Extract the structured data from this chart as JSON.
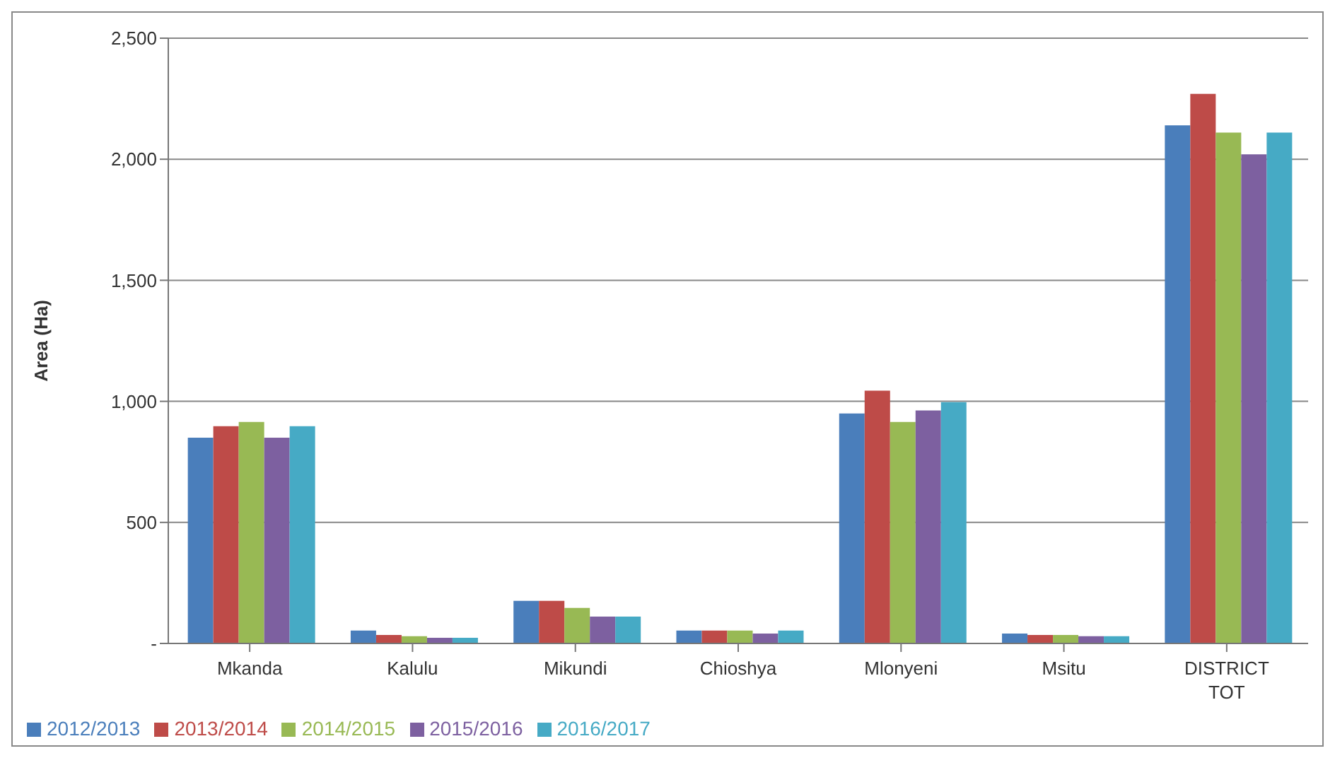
{
  "chart_data": {
    "type": "bar",
    "ylabel": "Area (Ha)",
    "categories": [
      "Mkanda",
      "Kalulu",
      "Mikundi",
      "Chioshya",
      "Mlonyeni",
      "Msitu",
      "DISTRICT TOT"
    ],
    "series": [
      {
        "name": "2012/2013",
        "color": "#4a7ebb",
        "values": [
          850,
          53,
          176,
          53,
          950,
          41,
          2140
        ]
      },
      {
        "name": "2013/2014",
        "color": "#be4b48",
        "values": [
          897,
          35,
          176,
          53,
          1044,
          35,
          2270
        ]
      },
      {
        "name": "2014/2015",
        "color": "#98b954",
        "values": [
          915,
          30,
          147,
          53,
          915,
          35,
          2110
        ]
      },
      {
        "name": "2015/2016",
        "color": "#7d60a0",
        "values": [
          850,
          23,
          111,
          41,
          962,
          30,
          2020
        ]
      },
      {
        "name": "2016/2017",
        "color": "#46aac5",
        "values": [
          897,
          23,
          111,
          53,
          997,
          30,
          2110
        ]
      }
    ],
    "ylim": [
      0,
      2500
    ],
    "yticks": [
      {
        "value": 0,
        "label": "-"
      },
      {
        "value": 500,
        "label": "500"
      },
      {
        "value": 1000,
        "label": "1,000"
      },
      {
        "value": 1500,
        "label": "1,500"
      },
      {
        "value": 2000,
        "label": "2,000"
      },
      {
        "value": 2500,
        "label": "2,500"
      }
    ],
    "grid": "y",
    "legend": "bottom"
  }
}
